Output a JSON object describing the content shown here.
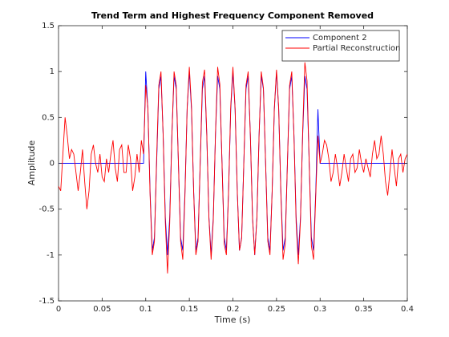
{
  "chart_data": {
    "type": "line",
    "title": "Trend Term and Highest Frequency Component Removed",
    "xlabel": "Time (s)",
    "ylabel": "Amplitude",
    "x": [
      0,
      0.0025,
      0.005,
      0.0075,
      0.01,
      0.0125,
      0.015,
      0.0175,
      0.02,
      0.0225,
      0.025,
      0.0275,
      0.03,
      0.0325,
      0.035,
      0.0375,
      0.04,
      0.0425,
      0.045,
      0.0475,
      0.05,
      0.0525,
      0.055,
      0.0575,
      0.06,
      0.0625,
      0.065,
      0.0675,
      0.07,
      0.0725,
      0.075,
      0.0775,
      0.08,
      0.0825,
      0.085,
      0.0875,
      0.09,
      0.0925,
      0.095,
      0.0975,
      0.1,
      0.1025,
      0.105,
      0.1075,
      0.11,
      0.1125,
      0.115,
      0.1175,
      0.12,
      0.1225,
      0.125,
      0.1275,
      0.13,
      0.1325,
      0.135,
      0.1375,
      0.14,
      0.1425,
      0.145,
      0.1475,
      0.15,
      0.1525,
      0.155,
      0.1575,
      0.16,
      0.1625,
      0.165,
      0.1675,
      0.17,
      0.1725,
      0.175,
      0.1775,
      0.18,
      0.1825,
      0.185,
      0.1875,
      0.19,
      0.1925,
      0.195,
      0.1975,
      0.2,
      0.2025,
      0.205,
      0.2075,
      0.21,
      0.2125,
      0.215,
      0.2175,
      0.22,
      0.2225,
      0.225,
      0.2275,
      0.23,
      0.2325,
      0.235,
      0.2375,
      0.24,
      0.2425,
      0.245,
      0.2475,
      0.25,
      0.2525,
      0.255,
      0.2575,
      0.26,
      0.2625,
      0.265,
      0.2675,
      0.27,
      0.2725,
      0.275,
      0.2775,
      0.28,
      0.2825,
      0.285,
      0.2875,
      0.29,
      0.2925,
      0.295,
      0.2975,
      0.3,
      0.3025,
      0.305,
      0.3075,
      0.31,
      0.3125,
      0.315,
      0.3175,
      0.32,
      0.3225,
      0.325,
      0.3275,
      0.33,
      0.3325,
      0.335,
      0.3375,
      0.34,
      0.3425,
      0.345,
      0.3475,
      0.35,
      0.3525,
      0.355,
      0.3575,
      0.36,
      0.3625,
      0.365,
      0.3675,
      0.37,
      0.3725,
      0.375,
      0.3775,
      0.38,
      0.3825,
      0.385,
      0.3875,
      0.39,
      0.3925,
      0.395,
      0.3975,
      0.4
    ],
    "series": [
      {
        "name": "Component 2",
        "color": "#0000ff",
        "values": [
          0,
          0,
          0,
          0,
          0,
          0,
          0,
          0,
          0,
          0,
          0,
          0,
          0,
          0,
          0,
          0,
          0,
          0,
          0,
          0,
          0,
          0,
          0,
          0,
          0,
          0,
          0,
          0,
          0,
          0,
          0,
          0,
          0,
          0,
          0,
          0,
          0,
          0,
          0,
          0,
          1,
          0.588,
          -0.309,
          -0.951,
          -0.809,
          0,
          0.809,
          0.951,
          0.309,
          -0.588,
          -1,
          -0.588,
          0.309,
          0.951,
          0.809,
          0,
          -0.809,
          -0.951,
          -0.309,
          0.588,
          1,
          0.588,
          -0.309,
          -0.951,
          -0.809,
          0,
          0.809,
          0.951,
          0.309,
          -0.588,
          -1,
          -0.588,
          0.309,
          0.951,
          0.809,
          0,
          -0.809,
          -0.951,
          -0.309,
          0.588,
          1,
          0.588,
          -0.309,
          -0.951,
          -0.809,
          0,
          0.809,
          0.951,
          0.309,
          -0.588,
          -1,
          -0.588,
          0.309,
          0.951,
          0.809,
          0,
          -0.809,
          -0.951,
          -0.309,
          0.588,
          1,
          0.588,
          -0.309,
          -0.951,
          -0.809,
          0,
          0.809,
          0.951,
          0.309,
          -0.588,
          -1,
          -0.588,
          0.309,
          0.951,
          0.809,
          0,
          -0.809,
          -0.951,
          -0.309,
          0.588,
          0,
          0,
          0,
          0,
          0,
          0,
          0,
          0,
          0,
          0,
          0,
          0,
          0,
          0,
          0,
          0,
          0,
          0,
          0,
          0,
          0,
          0,
          0,
          0,
          0,
          0,
          0,
          0,
          0,
          0,
          0,
          0,
          0,
          0,
          0,
          0,
          0,
          0,
          0,
          0,
          0
        ]
      },
      {
        "name": "Partial Reconstruction",
        "color": "#ff0000",
        "values": [
          -0.25,
          -0.3,
          0.1,
          0.5,
          0.3,
          0.05,
          0.15,
          0.1,
          -0.1,
          -0.3,
          -0.1,
          0.15,
          -0.2,
          -0.5,
          -0.3,
          0.1,
          0.2,
          0,
          -0.1,
          0.1,
          -0.15,
          -0.2,
          0.05,
          -0.1,
          0.1,
          0.25,
          -0.05,
          -0.2,
          0.15,
          0.2,
          -0.1,
          -0.1,
          0.2,
          0.05,
          -0.3,
          -0.15,
          0.1,
          -0.1,
          0.25,
          0.1,
          0.85,
          0.6,
          -0.35,
          -1.0,
          -0.85,
          0.05,
          0.85,
          1.0,
          0.3,
          -0.65,
          -1.2,
          -0.65,
          0.3,
          1.0,
          0.85,
          0.0,
          -0.85,
          -1.05,
          -0.35,
          0.6,
          1.05,
          0.62,
          -0.32,
          -1.0,
          -0.85,
          0.02,
          0.88,
          1.02,
          0.32,
          -0.6,
          -1.05,
          -0.62,
          0.33,
          1.05,
          0.86,
          0.0,
          -0.88,
          -1.0,
          -0.32,
          0.62,
          1.05,
          0.6,
          -0.3,
          -0.95,
          -0.82,
          0.0,
          0.85,
          1.0,
          0.3,
          -0.6,
          -1.0,
          -0.6,
          0.3,
          1.0,
          0.82,
          0.0,
          -0.85,
          -1.0,
          -0.3,
          0.6,
          1.02,
          0.6,
          -0.33,
          -1.05,
          -0.88,
          0.0,
          0.85,
          1.0,
          0.3,
          -0.65,
          -1.1,
          -0.62,
          0.35,
          1.1,
          0.9,
          0.0,
          -0.9,
          -1.05,
          -0.35,
          0.3,
          0.0,
          0.1,
          0.25,
          0.2,
          0.05,
          -0.2,
          -0.1,
          0.1,
          -0.05,
          -0.25,
          -0.1,
          0.1,
          -0.05,
          -0.2,
          0.05,
          0.1,
          -0.1,
          -0.05,
          0.15,
          0.0,
          -0.1,
          0.05,
          -0.05,
          -0.15,
          0.1,
          0.25,
          0.05,
          0.1,
          0.3,
          0.1,
          -0.2,
          -0.35,
          -0.1,
          0.15,
          -0.05,
          -0.25,
          0.05,
          0.1,
          -0.1,
          0.05,
          0.1
        ]
      }
    ],
    "xlim": [
      0,
      0.4
    ],
    "xticks": [
      0,
      0.05,
      0.1,
      0.15,
      0.2,
      0.25,
      0.3,
      0.35,
      0.4
    ],
    "ylim": [
      -1.5,
      1.5
    ],
    "yticks": [
      -1.5,
      -1,
      -0.5,
      0,
      0.5,
      1,
      1.5
    ],
    "grid": false,
    "legend": "northeast"
  }
}
